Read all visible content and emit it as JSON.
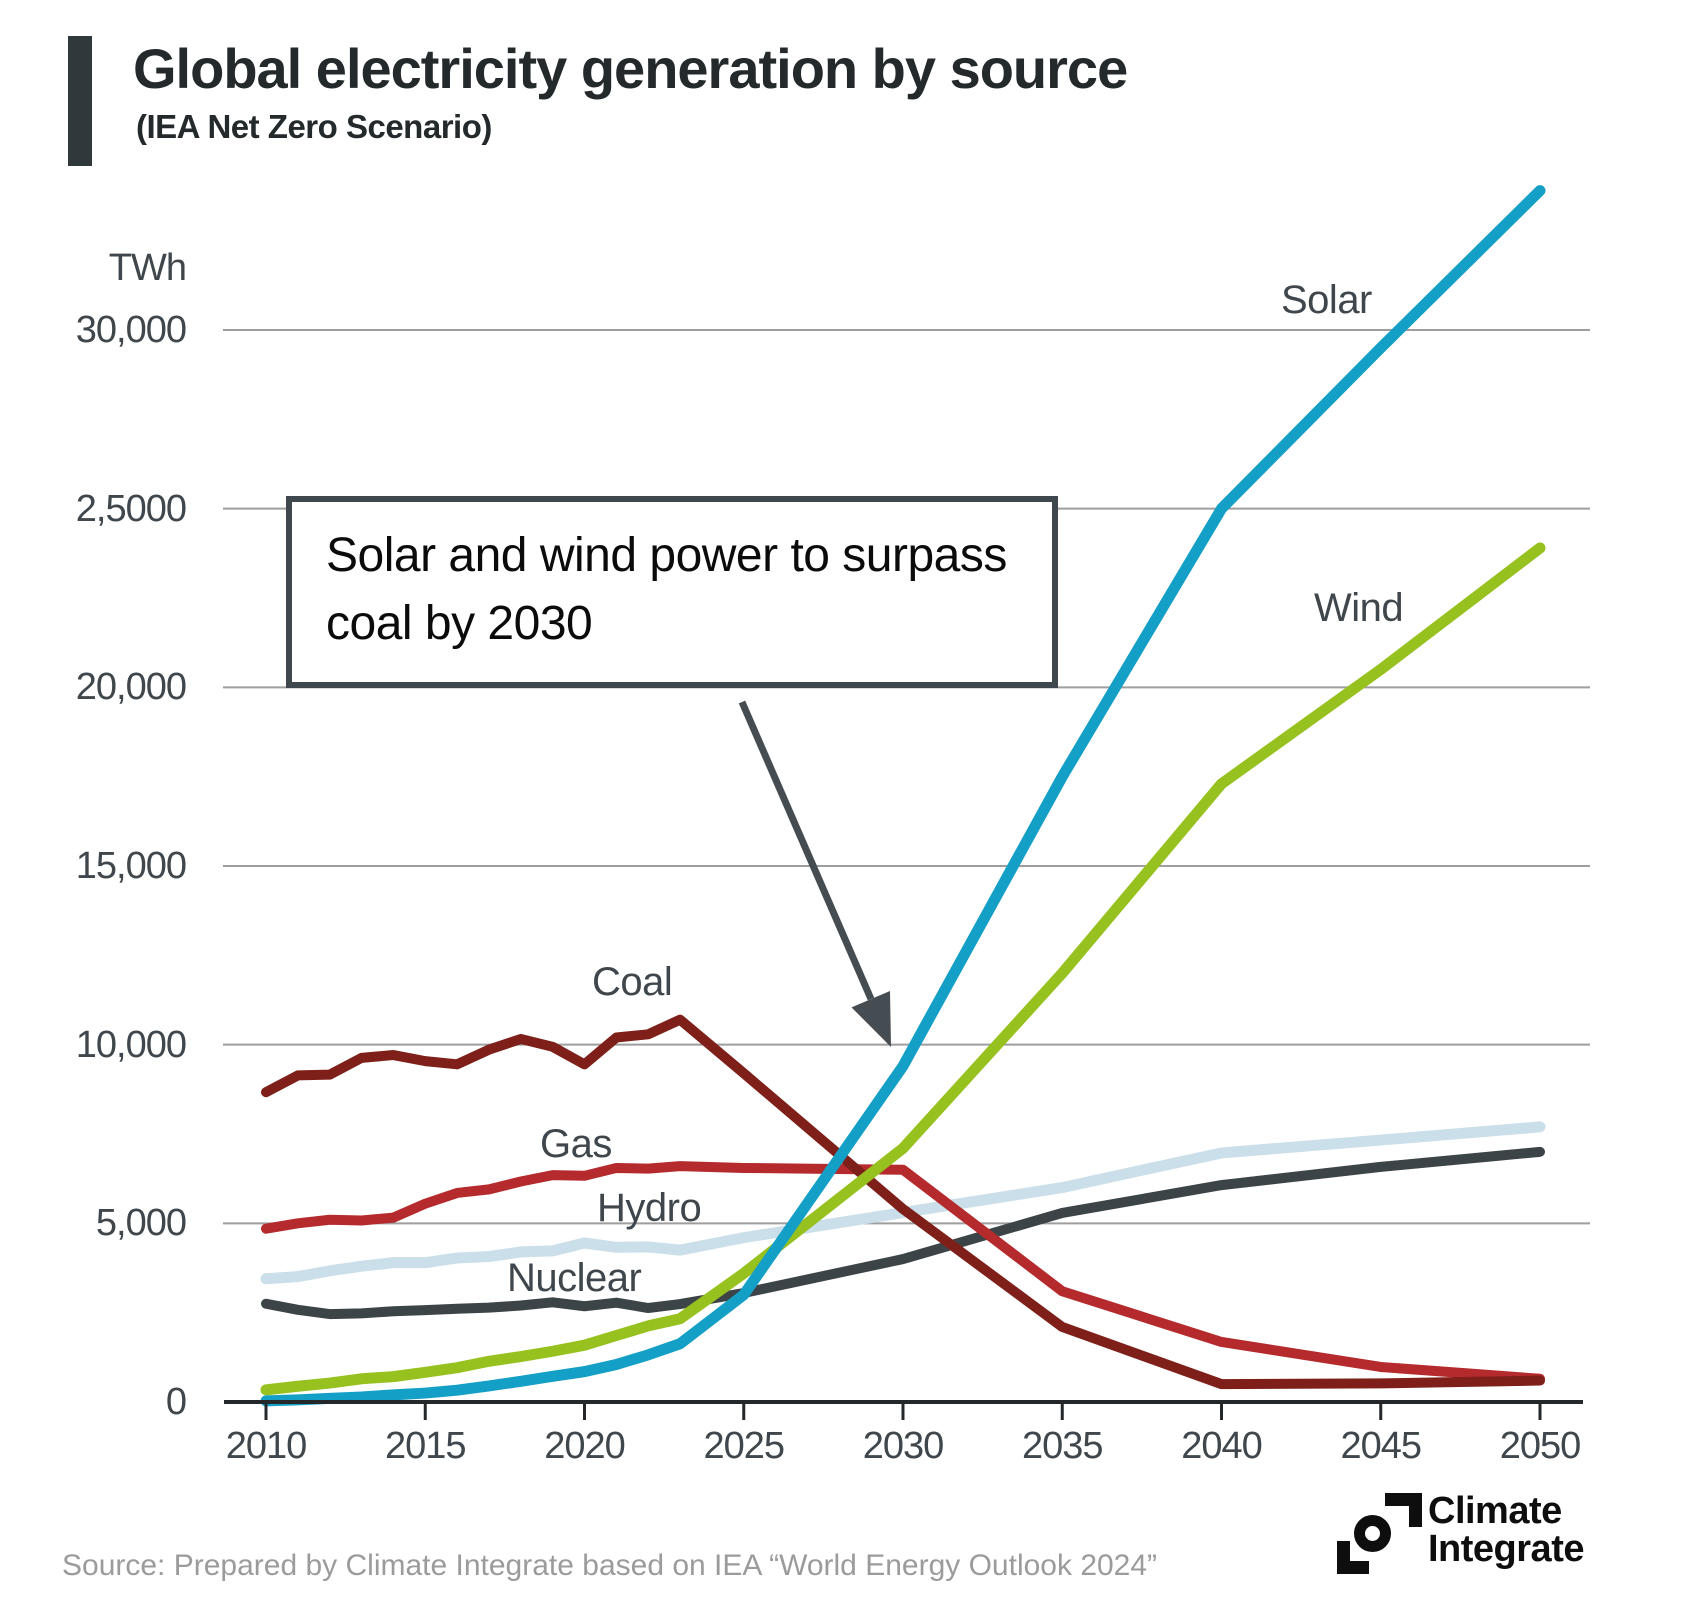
{
  "header": {
    "title": "Global electricity generation by source",
    "subtitle": "(IEA Net Zero Scenario)"
  },
  "annotation": {
    "text": "Solar and wind power to surpass coal by 2030"
  },
  "source": {
    "text": "Source: Prepared by Climate Integrate based on IEA “World Energy Outlook 2024”"
  },
  "logo": {
    "line1": "Climate",
    "line2": "Integrate"
  },
  "chart_data": {
    "type": "line",
    "title": "Global electricity generation by source (IEA Net Zero Scenario)",
    "unit_label": "TWh",
    "xlabel": "",
    "ylabel": "TWh",
    "xlim": [
      2010,
      2050
    ],
    "ylim": [
      0,
      34000
    ],
    "grid": true,
    "legend_position": "inline-labels",
    "x_ticks": [
      "2010",
      "2015",
      "2020",
      "2025",
      "2030",
      "2035",
      "2040",
      "2045",
      "2050"
    ],
    "y_ticks": [
      {
        "value": 0,
        "label": "0"
      },
      {
        "value": 5000,
        "label": "5,000"
      },
      {
        "value": 10000,
        "label": "10,000"
      },
      {
        "value": 15000,
        "label": "15,000"
      },
      {
        "value": 20000,
        "label": "20,000"
      },
      {
        "value": 25000,
        "label": "2,5000"
      },
      {
        "value": 30000,
        "label": "30,000"
      }
    ],
    "x": [
      2010,
      2011,
      2012,
      2013,
      2014,
      2015,
      2016,
      2017,
      2018,
      2019,
      2020,
      2021,
      2022,
      2023,
      2025,
      2030,
      2035,
      2040,
      2045,
      2050
    ],
    "series": [
      {
        "name": "Hydro",
        "color": "#cadfe9",
        "width": 11,
        "values": [
          3450,
          3510,
          3670,
          3800,
          3900,
          3900,
          4030,
          4070,
          4200,
          4230,
          4450,
          4330,
          4340,
          4250,
          4600,
          5300,
          6000,
          6970,
          7330,
          7700
        ]
      },
      {
        "name": "Nuclear",
        "color": "#3c4448",
        "width": 10,
        "values": [
          2750,
          2580,
          2460,
          2480,
          2540,
          2570,
          2610,
          2640,
          2700,
          2790,
          2680,
          2780,
          2630,
          2740,
          3050,
          4000,
          5290,
          6070,
          6580,
          7000
        ]
      },
      {
        "name": "Gas",
        "color": "#b52a2c",
        "width": 10,
        "values": [
          4850,
          5000,
          5100,
          5080,
          5160,
          5550,
          5850,
          5950,
          6170,
          6350,
          6330,
          6550,
          6530,
          6600,
          6550,
          6500,
          3100,
          1680,
          980,
          650
        ]
      },
      {
        "name": "Coal",
        "color": "#7e2019",
        "width": 10,
        "values": [
          8670,
          9140,
          9160,
          9630,
          9710,
          9540,
          9450,
          9860,
          10160,
          9940,
          9450,
          10200,
          10290,
          10700,
          9200,
          5400,
          2100,
          500,
          520,
          600
        ]
      },
      {
        "name": "Wind",
        "color": "#96c11e",
        "width": 11,
        "values": [
          340,
          440,
          530,
          650,
          710,
          830,
          960,
          1140,
          1270,
          1420,
          1590,
          1860,
          2130,
          2330,
          3600,
          7100,
          12000,
          17300,
          20500,
          23900
        ]
      },
      {
        "name": "Solar",
        "color": "#149fc6",
        "width": 11,
        "values": [
          30,
          60,
          100,
          140,
          200,
          250,
          330,
          450,
          580,
          720,
          850,
          1050,
          1320,
          1630,
          3000,
          9400,
          17500,
          25000,
          29500,
          33900
        ]
      }
    ],
    "grid_color": "#9e9e9e",
    "axis_color": "#24282b",
    "annotation_arrow_color": "#454d52"
  }
}
